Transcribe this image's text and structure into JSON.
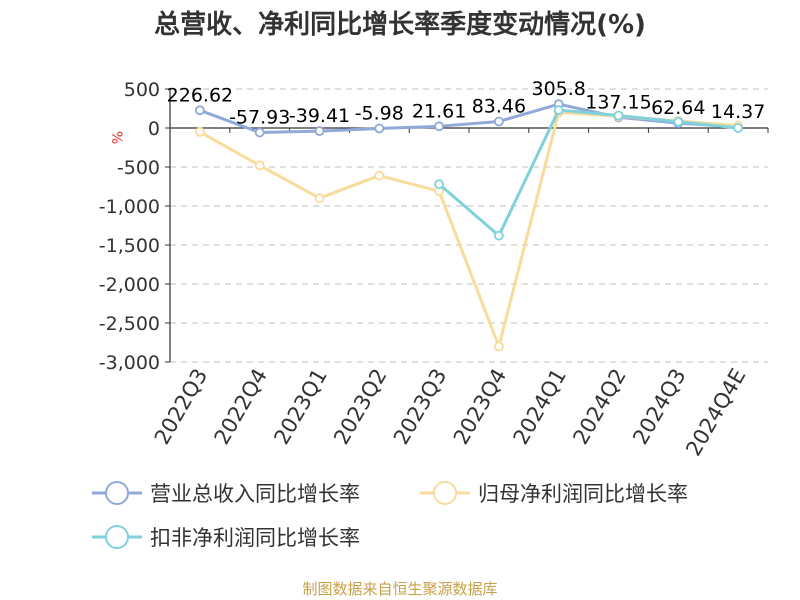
{
  "chart_data": {
    "type": "line",
    "title": "总营收、净利同比增长率季度变动情况(%)",
    "ylabel": "%",
    "categories": [
      "2022Q3",
      "2022Q4",
      "2023Q1",
      "2023Q2",
      "2023Q3",
      "2023Q4",
      "2024Q1",
      "2024Q2",
      "2024Q3",
      "2024Q4E"
    ],
    "ylim": [
      -3000,
      500
    ],
    "yticks": [
      500,
      0,
      -500,
      -1000,
      -1500,
      -2000,
      -2500,
      -3000
    ],
    "ytick_labels": [
      "500",
      "0",
      "-500",
      "-1,000",
      "-1,500",
      "-2,000",
      "-2,500",
      "-3,000"
    ],
    "grid": true,
    "legend_position": "bottom",
    "series": [
      {
        "name": "营业总收入同比增长率",
        "color": "#8fa9d9",
        "values": [
          226.62,
          -57.93,
          -39.41,
          -5.98,
          21.61,
          83.46,
          305.8,
          137.15,
          62.64,
          14.37
        ],
        "labels": [
          "226.62",
          "-57.93",
          "-39.41",
          "-5.98",
          "21.61",
          "83.46",
          "305.8",
          "137.15",
          "62.64",
          "14.37"
        ]
      },
      {
        "name": "归母净利润同比增长率",
        "color": "#f9dc9c",
        "values": [
          -50,
          -480,
          -900,
          -610,
          -810,
          -2800,
          200,
          150,
          90,
          30
        ]
      },
      {
        "name": "扣非净利润同比增长率",
        "color": "#7fd1dc",
        "values": [
          null,
          null,
          null,
          null,
          -720,
          -1380,
          230,
          160,
          80,
          0
        ]
      }
    ]
  },
  "source_note": "制图数据来自恒生聚源数据库"
}
